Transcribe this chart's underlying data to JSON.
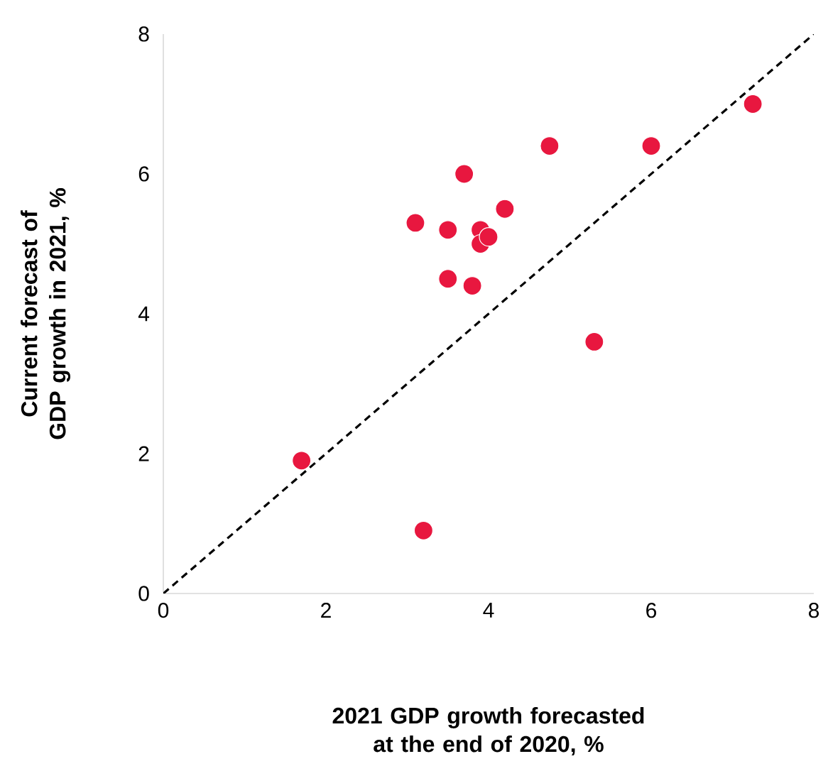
{
  "chart_data": {
    "type": "scatter",
    "xlabel": "2021 GDP growth forecasted at the end of 2020, %",
    "ylabel": "Current forecast of GDP growth in 2021, %",
    "xlim": [
      0,
      8
    ],
    "ylim": [
      0,
      8
    ],
    "xticks": [
      0,
      2,
      4,
      6,
      8
    ],
    "yticks": [
      0,
      2,
      4,
      6,
      8
    ],
    "grid": false,
    "series": [
      {
        "color": "#e8173f",
        "marker": "circle",
        "x": [
          1.7,
          3.2,
          3.1,
          3.5,
          3.5,
          3.7,
          3.8,
          3.9,
          3.9,
          4.0,
          4.2,
          4.75,
          5.3,
          6.0,
          7.25
        ],
        "values": [
          1.9,
          0.9,
          5.3,
          5.2,
          4.5,
          6.0,
          4.4,
          5.2,
          5.0,
          5.1,
          5.5,
          6.4,
          3.6,
          6.4,
          7.0
        ]
      },
      {
        "type": "line",
        "color": "#000000",
        "marker": "none",
        "line_style": "dashed",
        "x": [
          0,
          8
        ],
        "values": [
          0,
          8
        ]
      }
    ]
  }
}
